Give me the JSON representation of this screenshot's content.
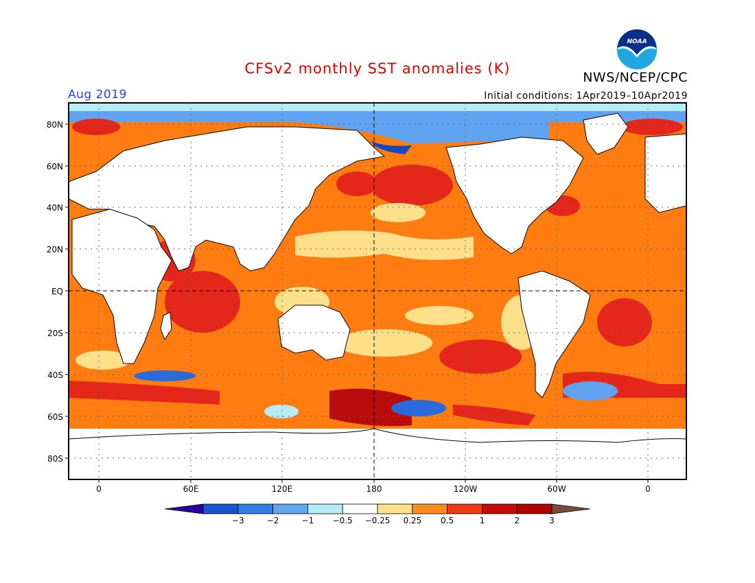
{
  "header": {
    "title": "CFSv2 monthly SST anomalies (K)",
    "agency": "NWS/NCEP/CPC",
    "valid_month": "Aug 2019",
    "initial_conditions": "Initial conditions: 1Apr2019–10Apr2019",
    "logo_text": "NOAA"
  },
  "map": {
    "lat_labels": [
      "80N",
      "60N",
      "40N",
      "20N",
      "EQ",
      "20S",
      "40S",
      "60S",
      "80S"
    ],
    "lon_labels": [
      "0",
      "60E",
      "120E",
      "180",
      "120W",
      "60W",
      "0"
    ]
  },
  "colorbar": {
    "labels": [
      "−3",
      "−2",
      "−1",
      "−0.5",
      "−0.25",
      "0.25",
      "0.5",
      "1",
      "2",
      "3"
    ],
    "colors": [
      "#2a00a0",
      "#1a55d0",
      "#2f7ee6",
      "#62a6f0",
      "#b4ecf8",
      "#ffffff",
      "#fde28a",
      "#ff8c1a",
      "#f03c10",
      "#c40c0c",
      "#b00000",
      "#7a4a3a"
    ]
  },
  "palette": {
    "land": "#ffffff",
    "warm_light": "#ffe08a",
    "warm": "#ff7d10",
    "warm_strong": "#ff4e00",
    "hot": "#e5261a",
    "hotter": "#b80b0b",
    "cool_light": "#b6ecf8",
    "cool": "#5fa3f0",
    "cool_strong": "#2a6bdc",
    "coolest": "#1848c0"
  }
}
